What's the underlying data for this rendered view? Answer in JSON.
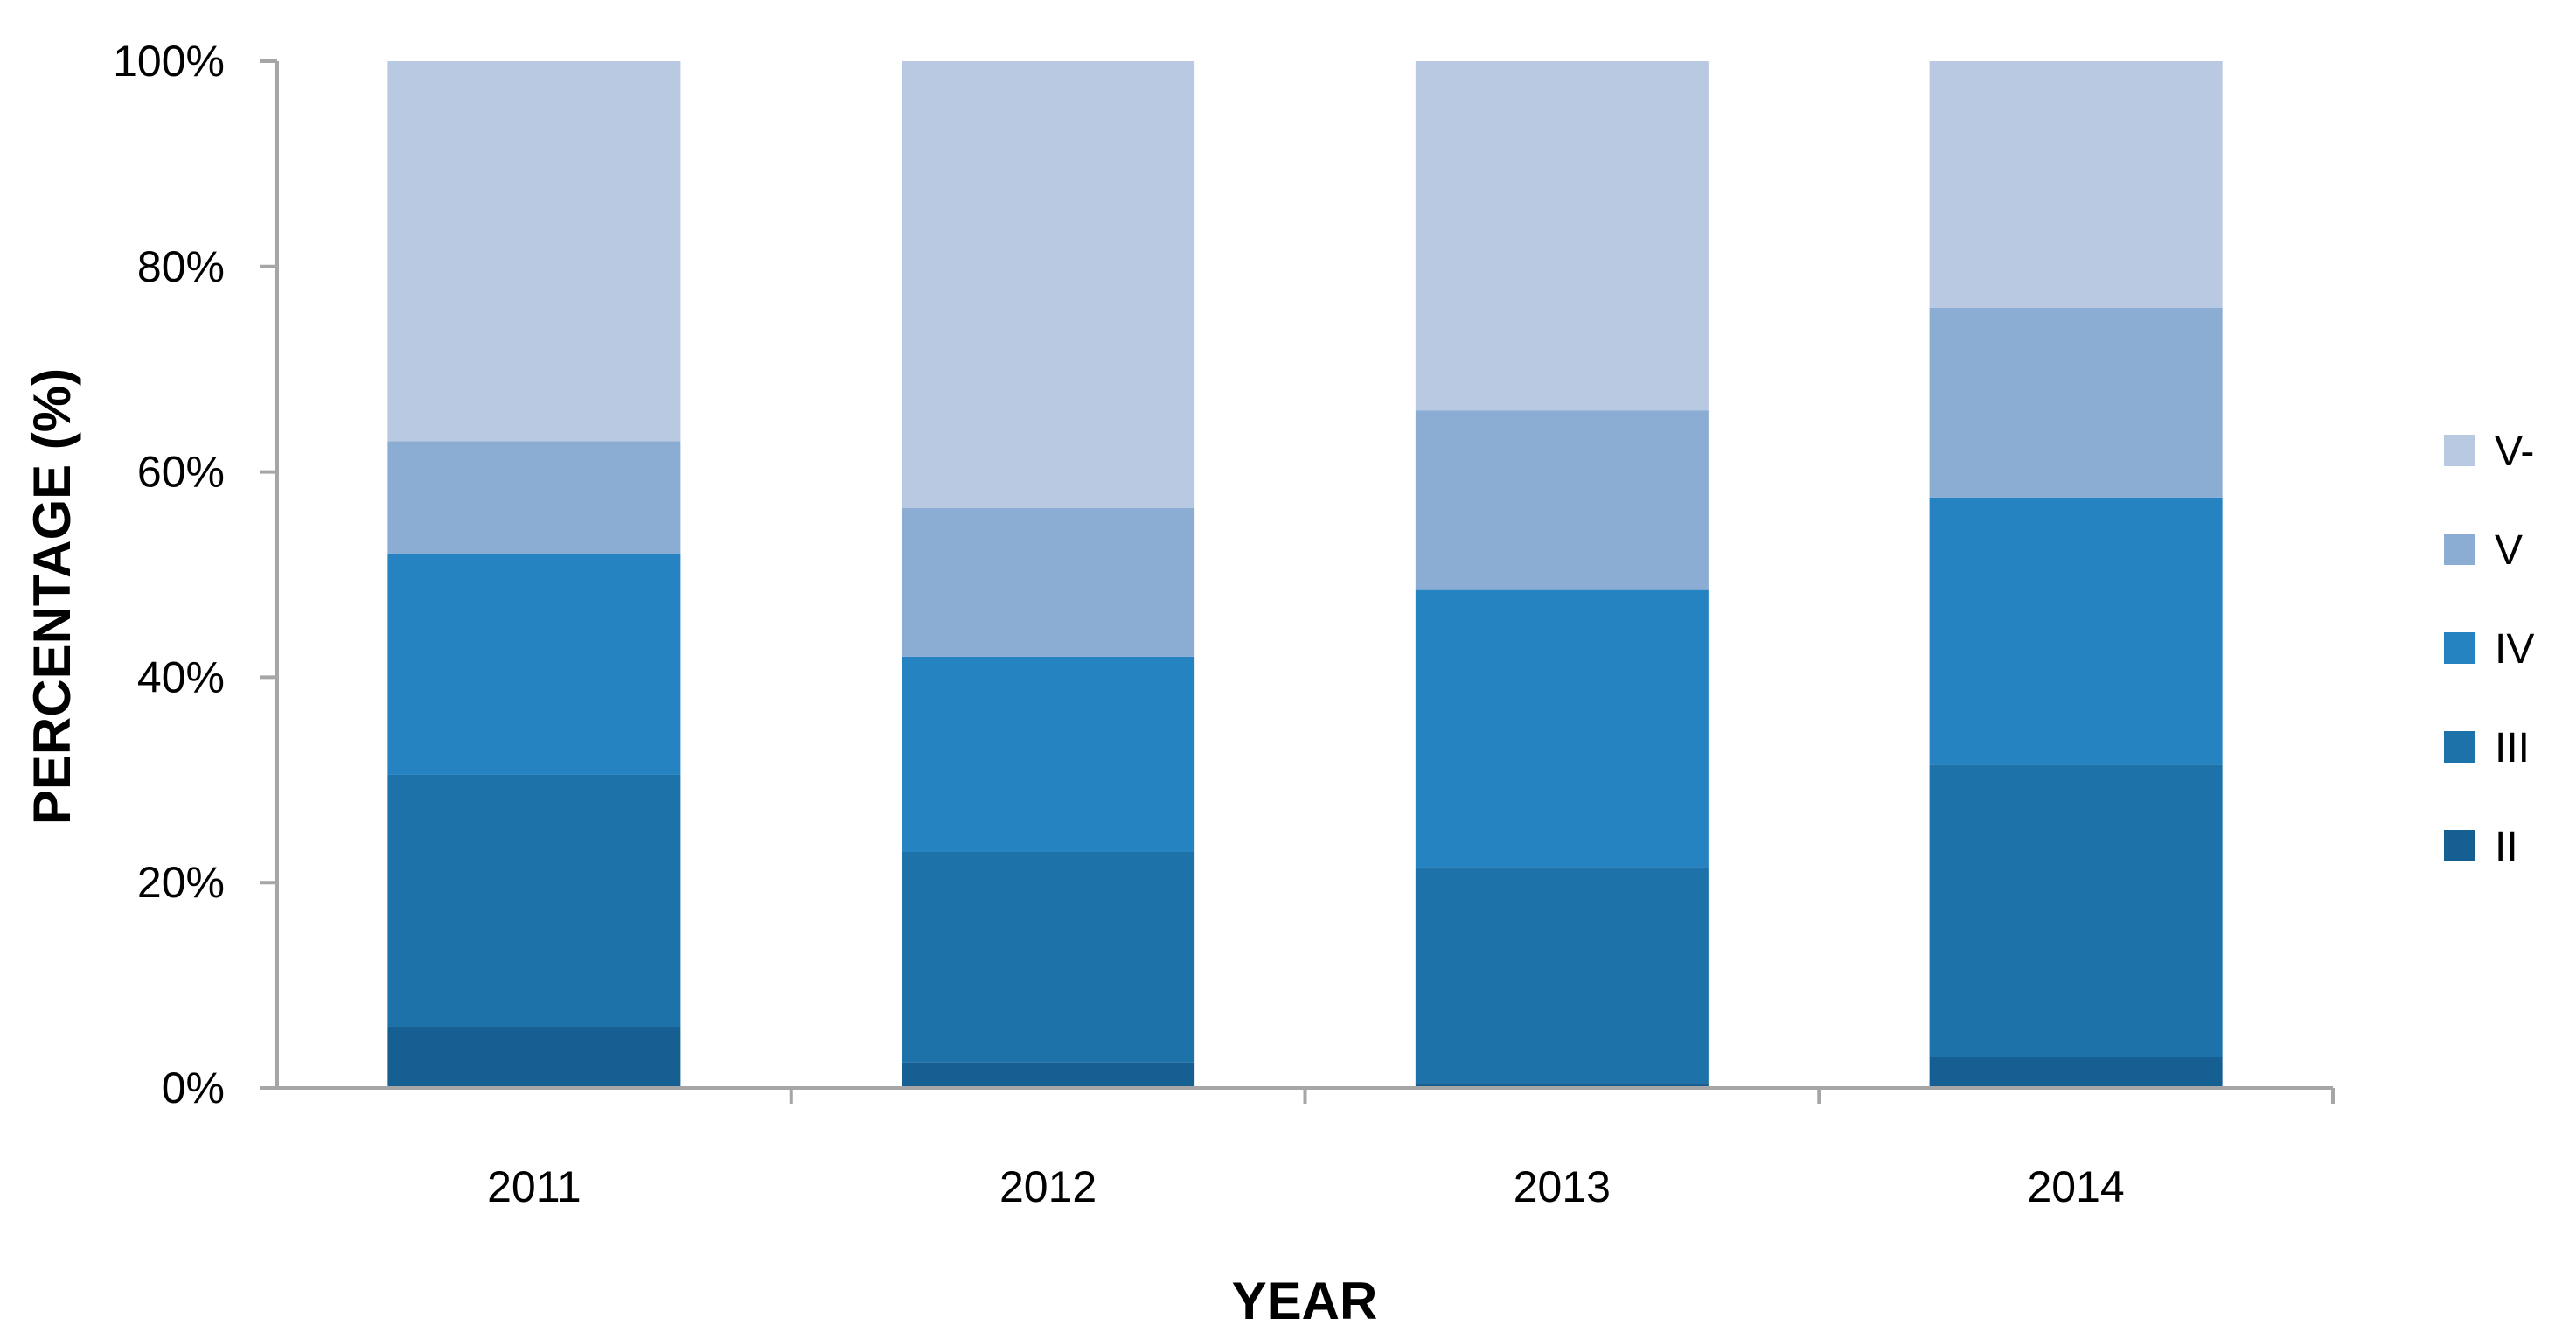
{
  "chart_data": {
    "type": "bar",
    "stacked": true,
    "percent_stacked": true,
    "categories": [
      "2011",
      "2012",
      "2013",
      "2014"
    ],
    "series": [
      {
        "name": "II",
        "color": "#155f92",
        "values": [
          6,
          2.5,
          0.5,
          3
        ]
      },
      {
        "name": "III",
        "color": "#1d72a9",
        "values": [
          24.5,
          20.5,
          21,
          28.5
        ]
      },
      {
        "name": "IV",
        "color": "#2683c2",
        "values": [
          21.5,
          19,
          27,
          26
        ]
      },
      {
        "name": "V",
        "color": "#8bacd3",
        "values": [
          11,
          14.5,
          17.5,
          18.5
        ]
      },
      {
        "name": "V-",
        "color": "#b9c9e2",
        "values": [
          37,
          43.5,
          34,
          24
        ]
      }
    ],
    "xlabel": "YEAR",
    "ylabel": "PERCENTAGE (%)",
    "ylim": [
      0,
      100
    ],
    "yticks": [
      "0%",
      "20%",
      "40%",
      "60%",
      "80%",
      "100%"
    ],
    "grid": false,
    "legend_position": "right",
    "legend_order": [
      "V-",
      "V",
      "IV",
      "III",
      "II"
    ]
  }
}
